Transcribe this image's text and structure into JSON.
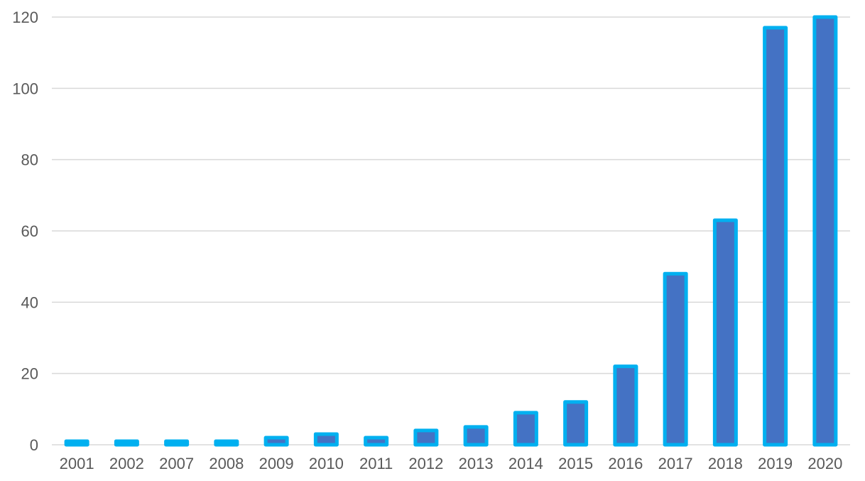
{
  "colors": {
    "bar_fill": "#4472C4",
    "bar_outline": "#00B0F0",
    "grid": "#D9D9D9",
    "tick_text": "#595959"
  },
  "chart_data": {
    "type": "bar",
    "title": "",
    "xlabel": "",
    "ylabel": "",
    "categories": [
      "2001",
      "2002",
      "2007",
      "2008",
      "2009",
      "2010",
      "2011",
      "2012",
      "2013",
      "2014",
      "2015",
      "2016",
      "2017",
      "2018",
      "2019",
      "2020"
    ],
    "values": [
      1,
      1,
      1,
      1,
      2,
      3,
      2,
      4,
      5,
      9,
      12,
      22,
      48,
      63,
      117,
      120
    ],
    "ylim": [
      0,
      120
    ],
    "yticks": [
      0,
      20,
      40,
      60,
      80,
      100,
      120
    ],
    "grid": true,
    "legend": "none"
  }
}
